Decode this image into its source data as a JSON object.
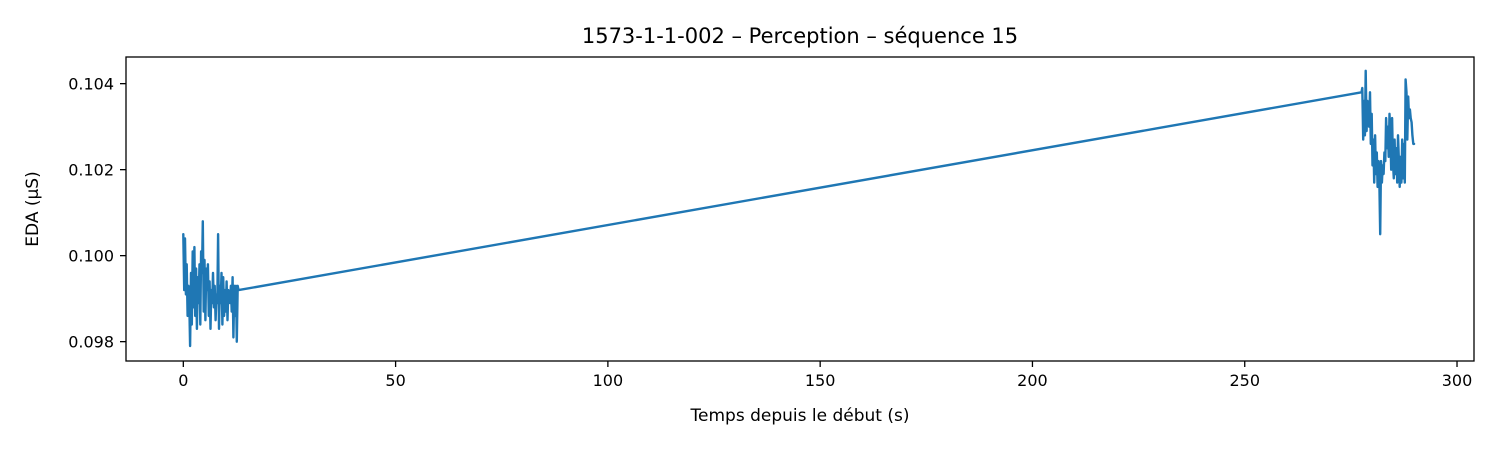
{
  "chart_data": {
    "type": "line",
    "title": "1573-1-1-002 – Perception – séquence 15",
    "xlabel": "Temps depuis le début (s)",
    "ylabel": "EDA (µS)",
    "xlim": [
      -13.5,
      304
    ],
    "ylim": [
      0.09755,
      0.10462
    ],
    "xticks": [
      0,
      50,
      100,
      150,
      200,
      250,
      300
    ],
    "xtick_labels": [
      "0",
      "50",
      "100",
      "150",
      "200",
      "250",
      "300"
    ],
    "yticks": [
      0.098,
      0.1,
      0.102,
      0.104
    ],
    "ytick_labels": [
      "0.098",
      "0.100",
      "0.102",
      "0.104"
    ],
    "grid": false,
    "legend": false,
    "series": [
      {
        "color": "#1f77b4",
        "x": [
          0.0,
          0.2,
          0.4,
          0.6,
          0.8,
          1.0,
          1.2,
          1.4,
          1.6,
          1.8,
          2.0,
          2.2,
          2.4,
          2.6,
          2.8,
          3.0,
          3.2,
          3.4,
          3.6,
          3.8,
          4.0,
          4.2,
          4.4,
          4.6,
          4.8,
          5.0,
          5.2,
          5.4,
          5.6,
          5.8,
          6.0,
          6.2,
          6.4,
          6.6,
          6.8,
          7.0,
          7.2,
          7.4,
          7.6,
          7.8,
          8.0,
          8.2,
          8.4,
          8.6,
          8.8,
          9.0,
          9.2,
          9.4,
          9.6,
          9.8,
          10.0,
          10.2,
          10.4,
          10.6,
          10.8,
          11.0,
          11.2,
          11.4,
          11.6,
          11.8,
          12.0,
          12.2,
          12.4,
          12.6,
          12.8,
          13.0,
          277.5,
          277.7,
          277.9,
          278.1,
          278.3,
          278.5,
          278.7,
          278.9,
          279.1,
          279.3,
          279.5,
          279.7,
          279.9,
          280.1,
          280.3,
          280.5,
          280.7,
          280.9,
          281.1,
          281.3,
          281.5,
          281.7,
          281.9,
          282.1,
          282.3,
          282.5,
          282.7,
          282.9,
          283.1,
          283.3,
          283.5,
          283.7,
          283.9,
          284.1,
          284.3,
          284.5,
          284.7,
          284.9,
          285.1,
          285.3,
          285.5,
          285.7,
          285.9,
          286.1,
          286.3,
          286.5,
          286.7,
          286.9,
          287.1,
          287.3,
          287.5,
          287.7,
          287.9,
          288.1,
          288.3,
          288.5,
          288.7,
          288.9,
          289.1,
          289.3,
          289.5,
          289.7,
          289.9
        ],
        "y": [
          0.1005,
          0.0992,
          0.1004,
          0.0991,
          0.0998,
          0.0986,
          0.0993,
          0.0989,
          0.0979,
          0.0996,
          0.0984,
          0.1001,
          0.0988,
          0.1002,
          0.0986,
          0.0997,
          0.0983,
          0.0995,
          0.0989,
          0.0998,
          0.0984,
          0.1001,
          0.0996,
          0.1008,
          0.0987,
          0.0999,
          0.0985,
          0.0997,
          0.0992,
          0.0998,
          0.0986,
          0.0994,
          0.0983,
          0.0992,
          0.0989,
          0.0996,
          0.0988,
          0.0993,
          0.0985,
          0.0991,
          0.0989,
          0.1005,
          0.0983,
          0.0993,
          0.0989,
          0.0996,
          0.0984,
          0.0995,
          0.0986,
          0.0992,
          0.0987,
          0.0994,
          0.0985,
          0.0992,
          0.0991,
          0.0989,
          0.0993,
          0.0987,
          0.0995,
          0.0981,
          0.0993,
          0.0986,
          0.0993,
          0.098,
          0.0993,
          0.0992,
          0.1038,
          0.1039,
          0.1027,
          0.1036,
          0.1028,
          0.1043,
          0.1029,
          0.1036,
          0.1032,
          0.103,
          0.1038,
          0.1026,
          0.1033,
          0.1021,
          0.1027,
          0.1017,
          0.1028,
          0.1019,
          0.1024,
          0.1016,
          0.1022,
          0.1018,
          0.1005,
          0.1022,
          0.1017,
          0.1021,
          0.1019,
          0.1024,
          0.1022,
          0.1032,
          0.1025,
          0.103,
          0.1023,
          0.1033,
          0.1028,
          0.102,
          0.1032,
          0.1022,
          0.1018,
          0.1027,
          0.1019,
          0.1025,
          0.1017,
          0.1028,
          0.1022,
          0.1016,
          0.1023,
          0.1017,
          0.1027,
          0.1018,
          0.1026,
          0.1017,
          0.1041,
          0.1038,
          0.1027,
          0.1037,
          0.1032,
          0.1034,
          0.1032,
          0.1031,
          0.1028,
          0.1026,
          0.1026
        ]
      }
    ]
  }
}
